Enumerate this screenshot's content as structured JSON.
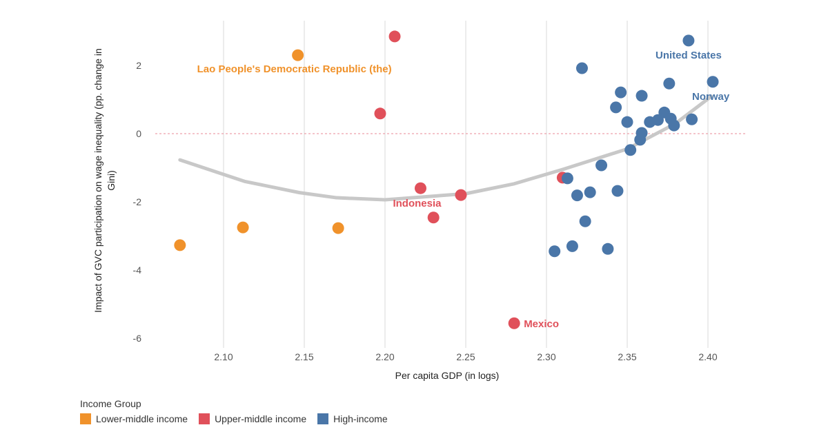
{
  "chart_data": {
    "type": "scatter",
    "xlabel": "Per capita GDP (in logs)",
    "ylabel": "Impact of GVC participation on wage inequality (pp. change in Gini)",
    "xlim": [
      2.07,
      2.425
    ],
    "ylim": [
      -6.4,
      3.3
    ],
    "xticks": [
      "2.10",
      "2.15",
      "2.20",
      "2.25",
      "2.30",
      "2.35",
      "2.40"
    ],
    "yticks": [
      "2",
      "0",
      "-2",
      "-4",
      "-6"
    ],
    "grid": "vertical",
    "reference_line_y": 0,
    "legend": {
      "title": "Income Group",
      "placement": "bottom-left",
      "items": [
        "Lower-middle income",
        "Upper-middle income",
        "High-income"
      ]
    },
    "colors": {
      "Lower-middle income": "#f0922b",
      "Upper-middle income": "#e0505a",
      "High-income": "#4a76a8",
      "trend": "#c8c8c8",
      "zero_line": "#e88a94"
    },
    "series": [
      {
        "name": "Lower-middle income",
        "points": [
          [
            2.073,
            -3.27
          ],
          [
            2.112,
            -2.75
          ],
          [
            2.146,
            2.3
          ],
          [
            2.171,
            -2.77
          ]
        ]
      },
      {
        "name": "Upper-middle income",
        "points": [
          [
            2.206,
            2.85
          ],
          [
            2.197,
            0.59
          ],
          [
            2.222,
            -1.6
          ],
          [
            2.23,
            -2.46
          ],
          [
            2.247,
            -1.8
          ],
          [
            2.28,
            -5.56
          ],
          [
            2.31,
            -1.29
          ]
        ]
      },
      {
        "name": "High-income",
        "points": [
          [
            2.388,
            2.73
          ],
          [
            2.322,
            1.92
          ],
          [
            2.376,
            1.47
          ],
          [
            2.403,
            1.52
          ],
          [
            2.346,
            1.21
          ],
          [
            2.359,
            1.11
          ],
          [
            2.343,
            0.77
          ],
          [
            2.35,
            0.34
          ],
          [
            2.364,
            0.34
          ],
          [
            2.369,
            0.4
          ],
          [
            2.373,
            0.62
          ],
          [
            2.377,
            0.44
          ],
          [
            2.379,
            0.24
          ],
          [
            2.39,
            0.42
          ],
          [
            2.359,
            0.02
          ],
          [
            2.358,
            -0.18
          ],
          [
            2.352,
            -0.48
          ],
          [
            2.334,
            -0.93
          ],
          [
            2.313,
            -1.31
          ],
          [
            2.327,
            -1.72
          ],
          [
            2.319,
            -1.81
          ],
          [
            2.344,
            -1.68
          ],
          [
            2.324,
            -2.57
          ],
          [
            2.316,
            -3.3
          ],
          [
            2.305,
            -3.45
          ],
          [
            2.338,
            -3.38
          ]
        ]
      }
    ],
    "trend": [
      [
        2.073,
        -0.77
      ],
      [
        2.113,
        -1.4
      ],
      [
        2.147,
        -1.73
      ],
      [
        2.17,
        -1.88
      ],
      [
        2.2,
        -1.94
      ],
      [
        2.25,
        -1.76
      ],
      [
        2.28,
        -1.47
      ],
      [
        2.31,
        -1.05
      ],
      [
        2.35,
        -0.45
      ],
      [
        2.38,
        0.3
      ],
      [
        2.402,
        1.09
      ]
    ],
    "annotations": [
      {
        "text": "Lao People's Democratic Republic (the)",
        "x": 2.146,
        "y": 2.3,
        "group": "Lower-middle income"
      },
      {
        "text": "Indonesia",
        "x": 2.222,
        "y": -1.6,
        "group": "Upper-middle income"
      },
      {
        "text": "Mexico",
        "x": 2.28,
        "y": -5.56,
        "group": "Upper-middle income"
      },
      {
        "text": "United States",
        "x": 2.388,
        "y": 2.73,
        "group": "High-income"
      },
      {
        "text": "Norway",
        "x": 2.403,
        "y": 1.52,
        "group": "High-income"
      }
    ]
  }
}
